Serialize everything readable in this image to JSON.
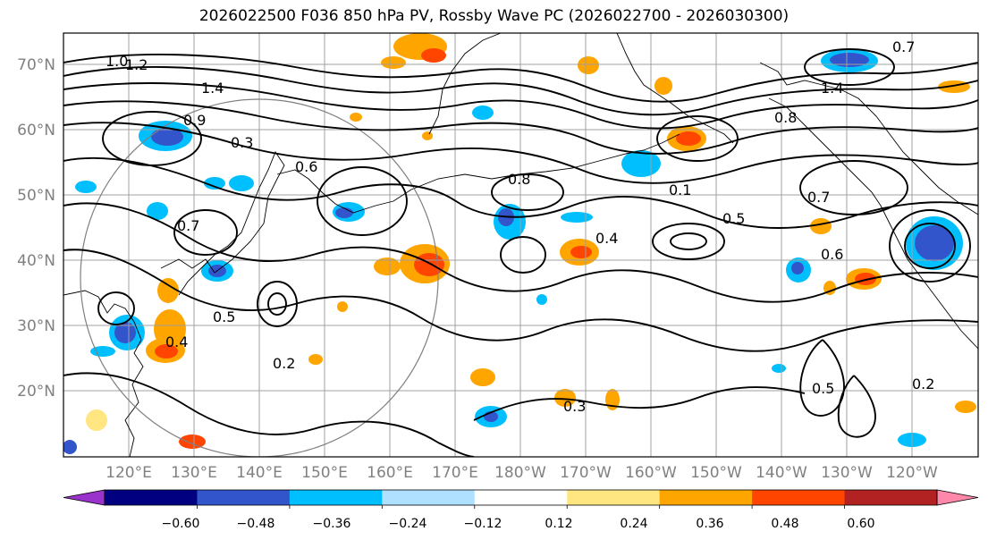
{
  "title": "2026022500 F036 850 hPa PV, Rossby Wave PC (2026022700 - 2026030300)",
  "lat_labels": [
    "70°N",
    "60°N",
    "50°N",
    "40°N",
    "30°N",
    "20°N"
  ],
  "lon_labels": [
    "120°E",
    "130°E",
    "140°E",
    "150°E",
    "160°E",
    "170°E",
    "180°W",
    "170°W",
    "160°W",
    "150°W",
    "140°W",
    "130°W",
    "120°W"
  ],
  "colorbar": {
    "colors": [
      "#9933cc",
      "#000080",
      "#3355cc",
      "#00bfff",
      "#b0e0ff",
      "#ffffff",
      "#ffe680",
      "#ffa500",
      "#ff4500",
      "#b22222",
      "#ff88aa"
    ],
    "tick_labels": [
      "−0.60",
      "−0.48",
      "−0.36",
      "−0.24",
      "−0.12",
      "0.12",
      "0.24",
      "0.36",
      "0.48",
      "0.60"
    ]
  },
  "contour_labels": [
    "1.0",
    "1.2",
    "1.4",
    "0.9",
    "0.3",
    "0.6",
    "0.7",
    "0.4",
    "0.5",
    "0.2",
    "0.8",
    "0.1",
    "0.3",
    "0.4",
    "0.5",
    "0.7",
    "0.6",
    "0.2",
    "0.5",
    "0.8",
    "1.4",
    "0.7"
  ],
  "colors": {
    "contour": "#000000",
    "grid": "#a0a0a0",
    "tick_text": "#808080"
  }
}
